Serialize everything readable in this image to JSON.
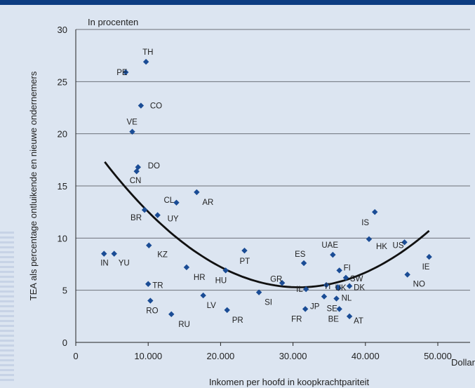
{
  "chart_data": {
    "type": "scatter",
    "subtitle": "In procenten",
    "xlabel": "Inkomen per hoofd in koopkrachtpariteit",
    "x_unit": "Dollar",
    "ylabel": "TEA als percentage ontluikende en nieuwe ondernemers",
    "xlim": [
      0,
      50000
    ],
    "ylim": [
      0,
      30
    ],
    "x_ticks": [
      "0",
      "10.000",
      "20.000",
      "30.000",
      "40.000",
      "50.000"
    ],
    "y_ticks": [
      "0",
      "5",
      "10",
      "15",
      "20",
      "25",
      "30"
    ],
    "grid": "horizontal",
    "colors": {
      "marker": "#1a4c95",
      "trend": "#111111",
      "grid": "#6d7078",
      "background": "#dce5f1"
    },
    "points": [
      {
        "label": "TH",
        "x": 9700,
        "y": 26.9
      },
      {
        "label": "PE",
        "x": 6900,
        "y": 25.9
      },
      {
        "label": "CO",
        "x": 9000,
        "y": 22.7
      },
      {
        "label": "VE",
        "x": 7800,
        "y": 20.2
      },
      {
        "label": "DO",
        "x": 8600,
        "y": 16.8
      },
      {
        "label": "CN",
        "x": 8400,
        "y": 16.4
      },
      {
        "label": "CL",
        "x": 13900,
        "y": 13.4
      },
      {
        "label": "AR",
        "x": 16700,
        "y": 14.4
      },
      {
        "label": "BR",
        "x": 9500,
        "y": 12.7
      },
      {
        "label": "UY",
        "x": 11300,
        "y": 12.2
      },
      {
        "label": "IN",
        "x": 3900,
        "y": 8.5
      },
      {
        "label": "YU",
        "x": 5300,
        "y": 8.5
      },
      {
        "label": "KZ",
        "x": 10100,
        "y": 9.3
      },
      {
        "label": "HR",
        "x": 15300,
        "y": 7.2
      },
      {
        "label": "HU",
        "x": 20700,
        "y": 6.9
      },
      {
        "label": "PT",
        "x": 23300,
        "y": 8.8
      },
      {
        "label": "TR",
        "x": 10000,
        "y": 5.6
      },
      {
        "label": "RO",
        "x": 10300,
        "y": 4.0
      },
      {
        "label": "LV",
        "x": 17600,
        "y": 4.5
      },
      {
        "label": "RU",
        "x": 13200,
        "y": 2.7
      },
      {
        "label": "PR",
        "x": 20900,
        "y": 3.1
      },
      {
        "label": "SI",
        "x": 25300,
        "y": 4.8
      },
      {
        "label": "GR",
        "x": 28500,
        "y": 5.7
      },
      {
        "label": "ES",
        "x": 31500,
        "y": 7.6
      },
      {
        "label": "FR",
        "x": 31700,
        "y": 3.2
      },
      {
        "label": "IL",
        "x": 31800,
        "y": 5.1
      },
      {
        "label": "UAE",
        "x": 35500,
        "y": 8.4
      },
      {
        "label": "FI",
        "x": 36400,
        "y": 6.9
      },
      {
        "label": "IT",
        "x": 34600,
        "y": 5.5
      },
      {
        "label": "UK",
        "x": 36200,
        "y": 5.3
      },
      {
        "label": "SW",
        "x": 37300,
        "y": 6.2
      },
      {
        "label": "DK",
        "x": 37800,
        "y": 5.4
      },
      {
        "label": "JP",
        "x": 34300,
        "y": 4.4
      },
      {
        "label": "SE",
        "x": 36000,
        "y": 4.2
      },
      {
        "label": "NL",
        "x": 36300,
        "y": 5.2
      },
      {
        "label": "BE",
        "x": 36400,
        "y": 3.2
      },
      {
        "label": "AT",
        "x": 37800,
        "y": 2.5
      },
      {
        "label": "IS",
        "x": 41300,
        "y": 12.5
      },
      {
        "label": "HK",
        "x": 40500,
        "y": 9.9
      },
      {
        "label": "US",
        "x": 45400,
        "y": 9.6
      },
      {
        "label": "NO",
        "x": 45800,
        "y": 6.5
      },
      {
        "label": "IE",
        "x": 48800,
        "y": 8.2
      }
    ],
    "trendline": {
      "type": "quadratic",
      "x_range": [
        4000,
        48800
      ],
      "x": [
        4000,
        31800,
        48800
      ],
      "y": [
        17.3,
        5.3,
        10.7
      ]
    }
  }
}
